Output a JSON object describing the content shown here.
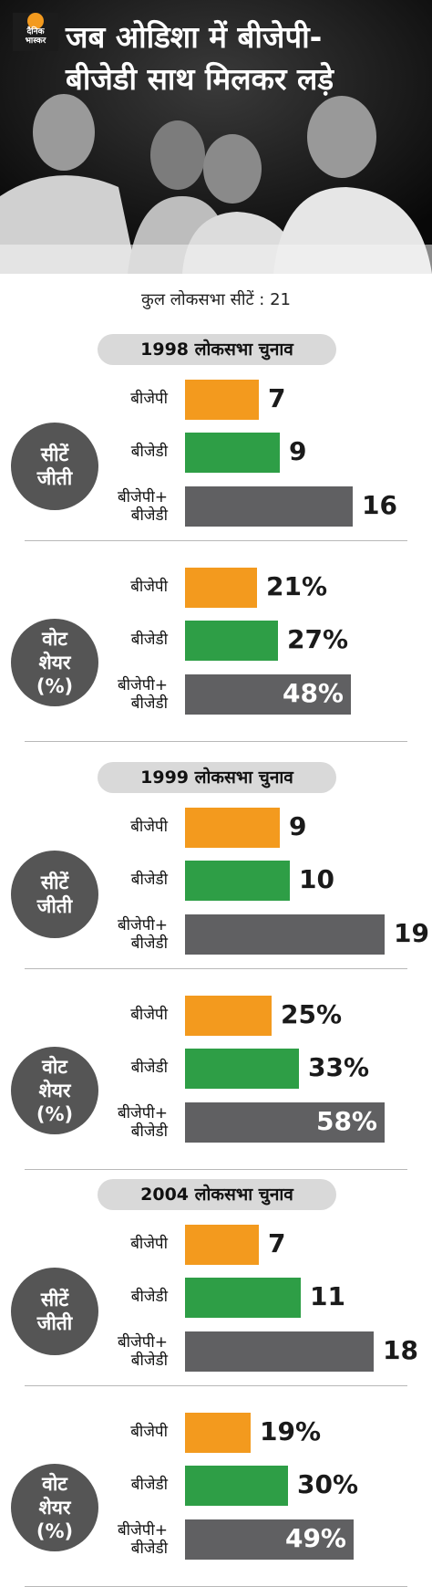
{
  "header": {
    "logo_line1": "दैनिक",
    "logo_line2": "भास्कर",
    "title_line1": "जब ओडिशा में बीजेपी-",
    "title_line2": "बीजेडी साथ मिलकर लड़े"
  },
  "subtitle": "कुल लोकसभा सीटें : 21",
  "labels": {
    "seats_line1": "सीटें",
    "seats_line2": "जीती",
    "vote_line1": "वोट",
    "vote_line2": "शेयर",
    "vote_line3": "(%)",
    "bjp": "बीजेपी",
    "bjd": "बीजेडी",
    "combined_line1": "बीजेपी+",
    "combined_line2": "बीजेडी"
  },
  "colors": {
    "bjp": "#f39a1e",
    "bjd": "#2e9e46",
    "combined": "#606062",
    "circle": "#555555"
  },
  "chart_data": [
    {
      "type": "bar",
      "title": "1998 लोकसभा चुनाव",
      "metric": "सीटें जीती",
      "categories": [
        "बीजेपी",
        "बीजेडी",
        "बीजेपी+ बीजेडी"
      ],
      "values": [
        7,
        9,
        16
      ],
      "display": [
        "7",
        "9",
        "16"
      ]
    },
    {
      "type": "bar",
      "title": "1998 लोकसभा चुनाव",
      "metric": "वोट शेयर (%)",
      "categories": [
        "बीजेपी",
        "बीजेडी",
        "बीजेपी+ बीजेडी"
      ],
      "values": [
        21,
        27,
        48
      ],
      "display": [
        "21%",
        "27%",
        "48%"
      ]
    },
    {
      "type": "bar",
      "title": "1999 लोकसभा चुनाव",
      "metric": "सीटें जीती",
      "categories": [
        "बीजेपी",
        "बीजेडी",
        "बीजेपी+ बीजेडी"
      ],
      "values": [
        9,
        10,
        19
      ],
      "display": [
        "9",
        "10",
        "19"
      ]
    },
    {
      "type": "bar",
      "title": "1999 लोकसभा चुनाव",
      "metric": "वोट शेयर (%)",
      "categories": [
        "बीजेपी",
        "बीजेडी",
        "बीजेपी+ बीजेडी"
      ],
      "values": [
        25,
        33,
        58
      ],
      "display": [
        "25%",
        "33%",
        "58%"
      ]
    },
    {
      "type": "bar",
      "title": "2004 लोकसभा चुनाव",
      "metric": "सीटें जीती",
      "categories": [
        "बीजेपी",
        "बीजेडी",
        "बीजेपी+ बीजेडी"
      ],
      "values": [
        7,
        11,
        18
      ],
      "display": [
        "7",
        "11",
        "18"
      ]
    },
    {
      "type": "bar",
      "title": "2004 लोकसभा चुनाव",
      "metric": "वोट शेयर (%)",
      "categories": [
        "बीजेपी",
        "बीजेडी",
        "बीजेपी+ बीजेडी"
      ],
      "values": [
        19,
        30,
        49
      ],
      "display": [
        "19%",
        "30%",
        "49%"
      ]
    }
  ]
}
